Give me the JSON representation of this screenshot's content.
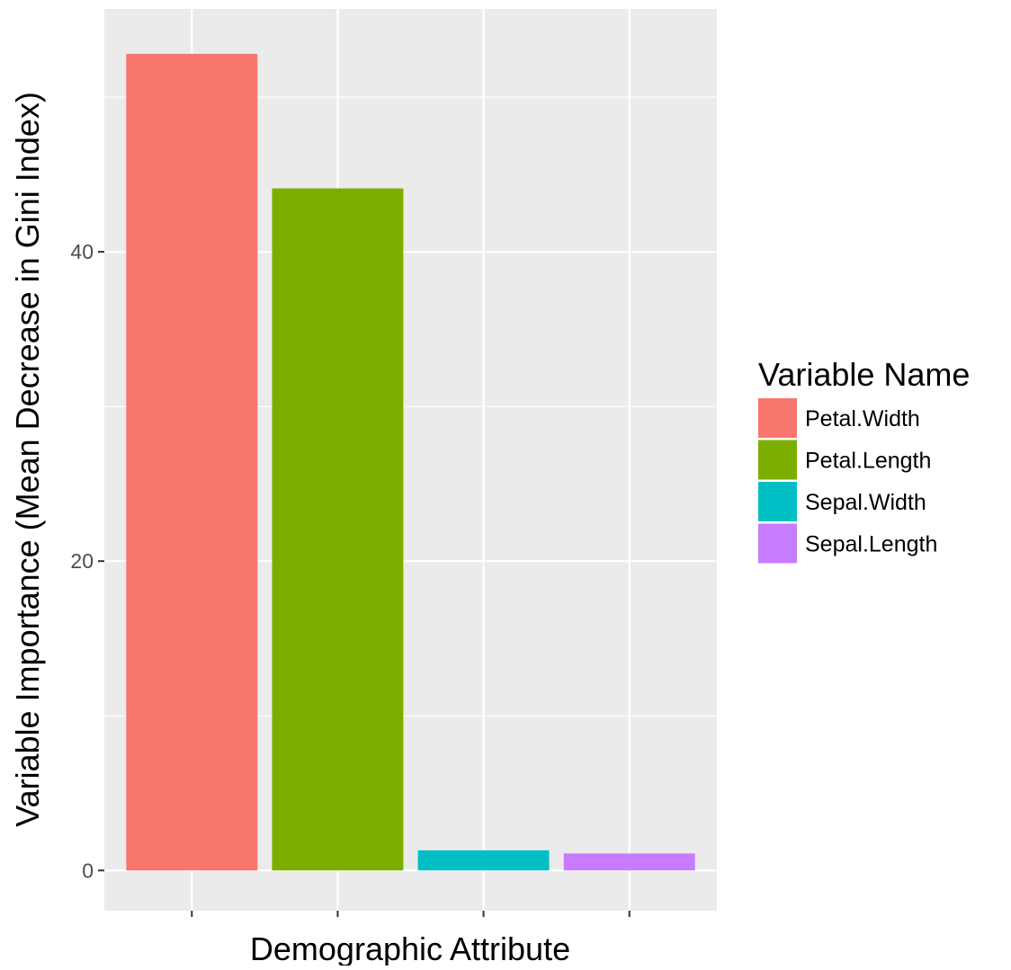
{
  "chart_data": {
    "type": "bar",
    "title": "",
    "xlabel": "Demographic Attribute",
    "ylabel": "Variable Importance (Mean Decrease in Gini Index)",
    "categories": [
      "Petal.Width",
      "Petal.Length",
      "Sepal.Width",
      "Sepal.Length"
    ],
    "values": [
      52.8,
      44.1,
      1.3,
      1.1
    ],
    "colors": [
      "#F8766D",
      "#7CAE00",
      "#00BFC4",
      "#C77CFF"
    ],
    "ylim": [
      -2.6,
      55.7
    ],
    "yticks": [
      0,
      20,
      40
    ],
    "y_minor_ticks": [
      10,
      30,
      50
    ],
    "x_tick_labels_shown": false,
    "grid": true,
    "panel_background": "#EBEBEB",
    "legend": {
      "title": "Variable Name",
      "position": "right",
      "entries": [
        "Petal.Width",
        "Petal.Length",
        "Sepal.Width",
        "Sepal.Length"
      ]
    }
  }
}
